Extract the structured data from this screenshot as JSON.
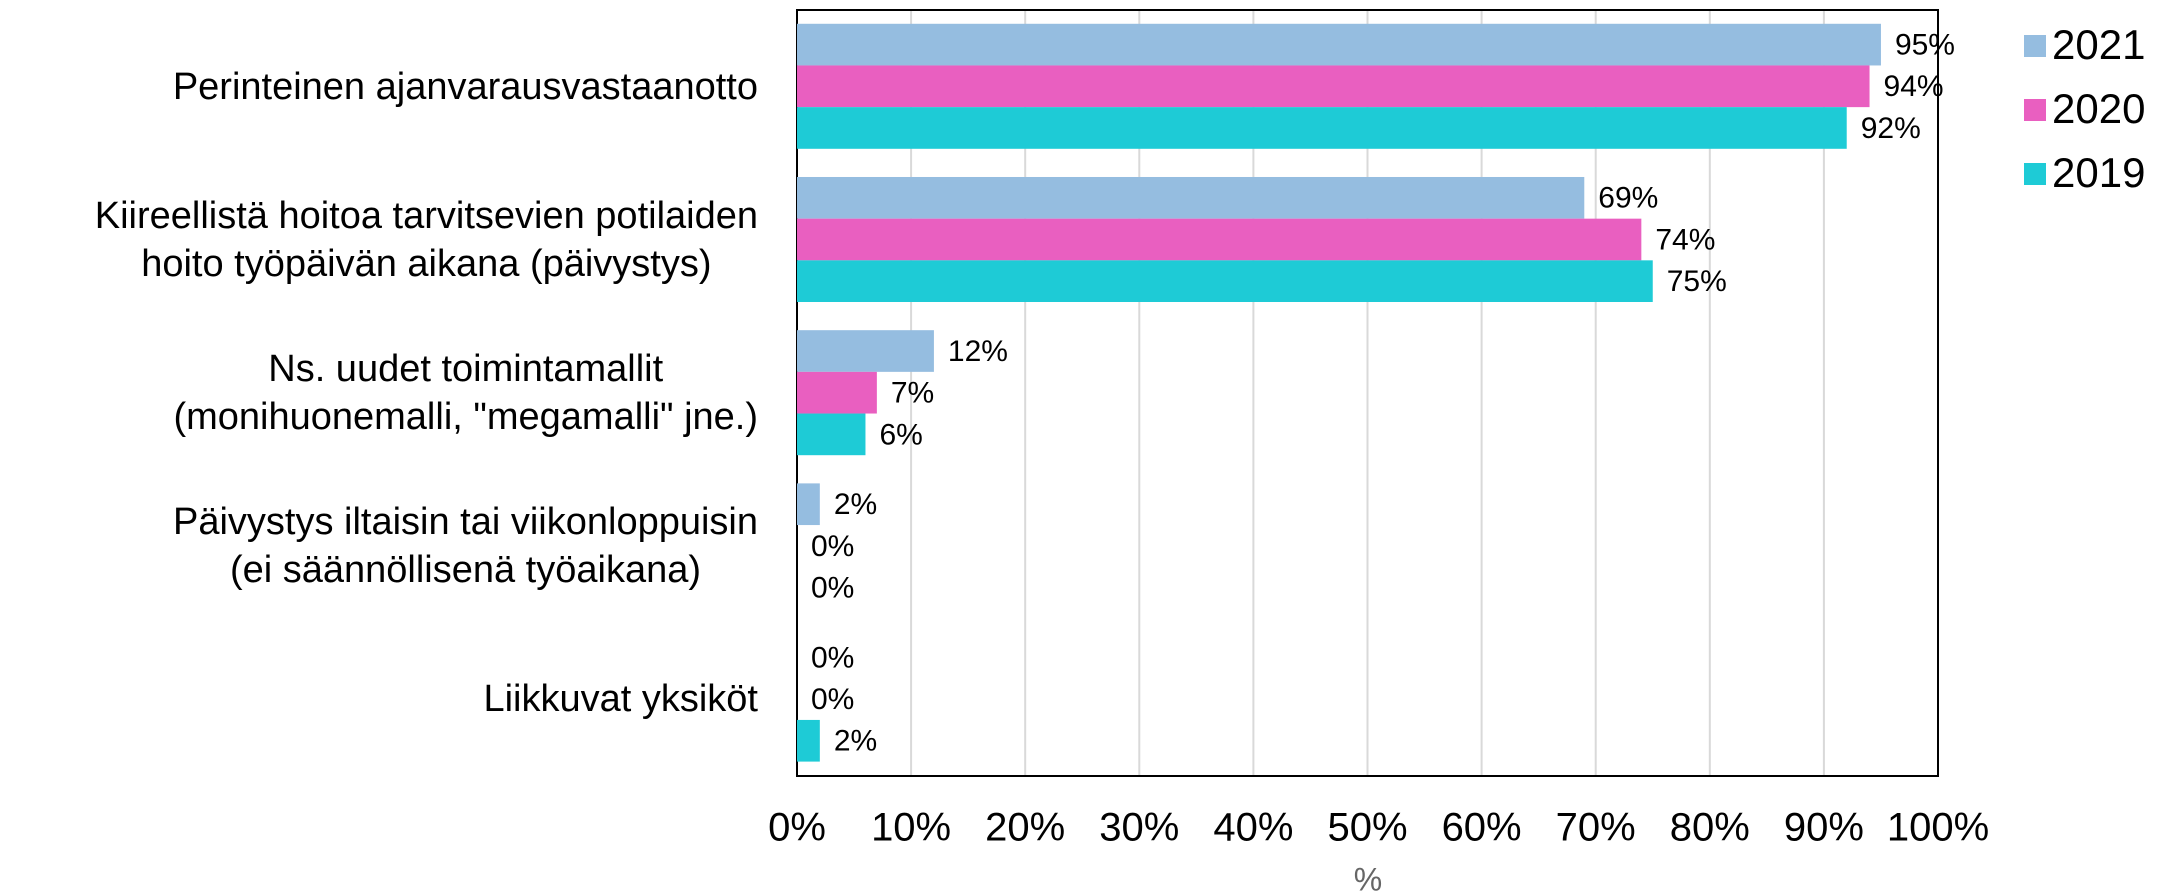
{
  "chart_data": {
    "type": "bar",
    "orientation": "horizontal",
    "categories": [
      "Perinteinen ajanvarausvastaanotto",
      "Kiireellistä hoitoa tarvitsevien potilaiden\nhoito työpäivän aikana (päivystys)",
      "Ns. uudet toimintamallit\n(monihuonemalli, \"megamalli\" jne.)",
      "Päivystys iltaisin tai viikonloppuisin\n(ei säännöllisenä työaikana)",
      "Liikkuvat yksiköt"
    ],
    "series": [
      {
        "name": "2021",
        "color": "#95bde0",
        "values": [
          95,
          69,
          12,
          2,
          0
        ],
        "value_labels": [
          "95%",
          "69%",
          "12%",
          "2%",
          "0%"
        ]
      },
      {
        "name": "2020",
        "color": "#e95fc0",
        "values": [
          94,
          74,
          7,
          0,
          0
        ],
        "value_labels": [
          "94%",
          "74%",
          "7%",
          "0%",
          "0%"
        ]
      },
      {
        "name": "2019",
        "color": "#1ecbd6",
        "values": [
          92,
          75,
          6,
          0,
          2
        ],
        "value_labels": [
          "92%",
          "75%",
          "6%",
          "0%",
          "2%"
        ]
      }
    ],
    "xlabel": "%",
    "xlim": [
      0,
      100
    ],
    "xticks": [
      {
        "value": 0,
        "label": "0%"
      },
      {
        "value": 10,
        "label": "10%"
      },
      {
        "value": 20,
        "label": "20%"
      },
      {
        "value": 30,
        "label": "30%"
      },
      {
        "value": 40,
        "label": "40%"
      },
      {
        "value": 50,
        "label": "50%"
      },
      {
        "value": 60,
        "label": "60%"
      },
      {
        "value": 70,
        "label": "70%"
      },
      {
        "value": 80,
        "label": "80%"
      },
      {
        "value": 90,
        "label": "90%"
      },
      {
        "value": 100,
        "label": "100%"
      }
    ],
    "grid": true,
    "legend": "right"
  }
}
